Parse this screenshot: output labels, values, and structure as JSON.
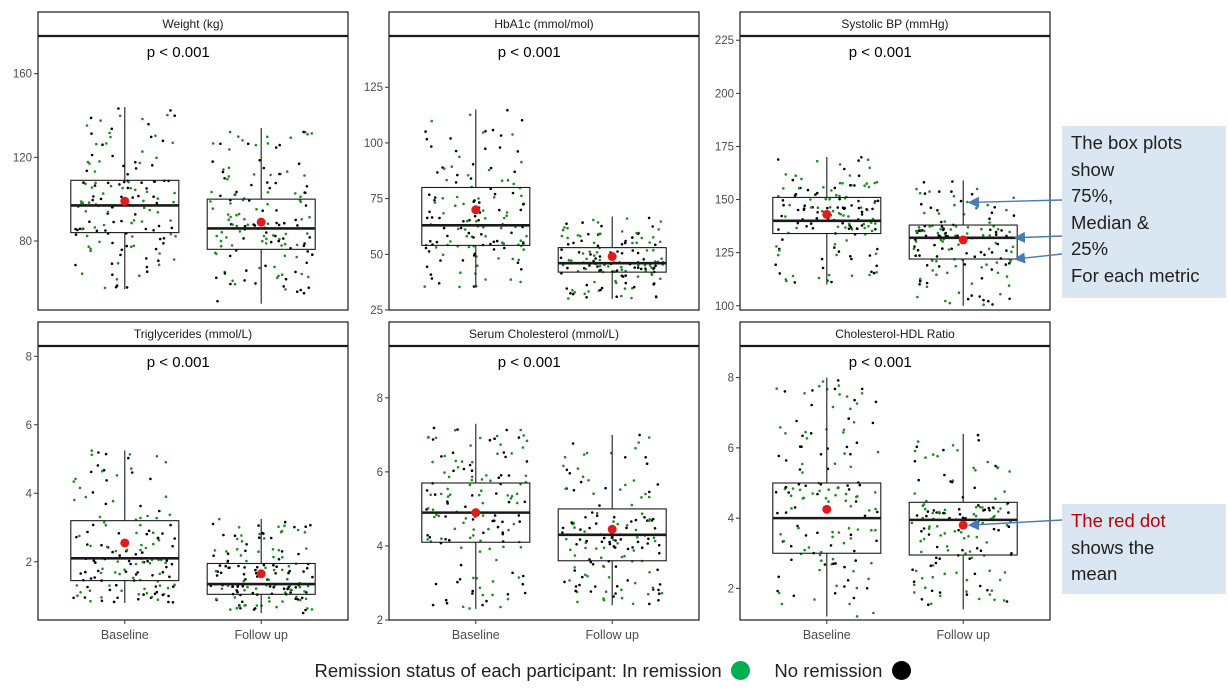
{
  "chart_data": [
    {
      "type": "box",
      "title": "Weight (kg)",
      "annotation": "p < 0.001",
      "categories": [
        "Baseline",
        "Follow up"
      ],
      "yticks": [
        80,
        120,
        160
      ],
      "ylim": [
        47,
        178
      ],
      "boxes": [
        {
          "min": 57,
          "q1": 84,
          "median": 97,
          "q3": 109,
          "max": 144,
          "mean": 99
        },
        {
          "min": 50,
          "q1": 76,
          "median": 86,
          "q3": 100,
          "max": 134,
          "mean": 89
        }
      ]
    },
    {
      "type": "box",
      "title": "HbA1c (mmol/mol)",
      "annotation": "p < 0.001",
      "categories": [
        "Baseline",
        "Follow up"
      ],
      "yticks": [
        25,
        50,
        75,
        100,
        125
      ],
      "ylim": [
        25,
        148
      ],
      "boxes": [
        {
          "min": 35,
          "q1": 54,
          "median": 63,
          "q3": 80,
          "max": 115,
          "mean": 70
        },
        {
          "min": 30,
          "q1": 42,
          "median": 46,
          "q3": 53,
          "max": 67,
          "mean": 49
        }
      ]
    },
    {
      "type": "box",
      "title": "Systolic BP (mmHg)",
      "annotation": "p < 0.001",
      "categories": [
        "Baseline",
        "Follow up"
      ],
      "yticks": [
        100,
        125,
        150,
        175,
        200,
        225
      ],
      "ylim": [
        98,
        227
      ],
      "boxes": [
        {
          "min": 110,
          "q1": 134,
          "median": 140,
          "q3": 151,
          "max": 170,
          "mean": 143
        },
        {
          "min": 100,
          "q1": 122,
          "median": 132,
          "q3": 138,
          "max": 159,
          "mean": 131
        }
      ]
    },
    {
      "type": "box",
      "title": "Triglycerides (mmol/L)",
      "annotation": "p < 0.001",
      "categories": [
        "Baseline",
        "Follow up"
      ],
      "yticks": [
        2,
        4,
        6,
        8
      ],
      "ylim": [
        0.3,
        8.3
      ],
      "boxes": [
        {
          "min": 0.8,
          "q1": 1.45,
          "median": 2.1,
          "q3": 3.2,
          "max": 5.25,
          "mean": 2.55
        },
        {
          "min": 0.5,
          "q1": 1.05,
          "median": 1.35,
          "q3": 1.95,
          "max": 3.25,
          "mean": 1.65
        }
      ]
    },
    {
      "type": "box",
      "title": "Serum Cholesterol (mmol/L)",
      "annotation": "p < 0.001",
      "categories": [
        "Baseline",
        "Follow up"
      ],
      "yticks": [
        2,
        4,
        6,
        8
      ],
      "ylim": [
        2,
        9.4
      ],
      "boxes": [
        {
          "min": 2.3,
          "q1": 4.1,
          "median": 4.9,
          "q3": 5.7,
          "max": 7.3,
          "mean": 4.9
        },
        {
          "min": 2.4,
          "q1": 3.6,
          "median": 4.3,
          "q3": 5.0,
          "max": 7.0,
          "mean": 4.45
        }
      ]
    },
    {
      "type": "box",
      "title": "Cholesterol-HDL Ratio",
      "annotation": "p < 0.001",
      "categories": [
        "Baseline",
        "Follow up"
      ],
      "yticks": [
        2,
        4,
        6,
        8
      ],
      "ylim": [
        1.1,
        8.9
      ],
      "boxes": [
        {
          "min": 1.2,
          "q1": 3.0,
          "median": 4.0,
          "q3": 5.0,
          "max": 8.0,
          "mean": 4.25
        },
        {
          "min": 1.4,
          "q1": 2.95,
          "median": 3.95,
          "q3": 4.45,
          "max": 6.4,
          "mean": 3.8
        }
      ]
    }
  ],
  "annotations": {
    "boxplot_note": [
      "The box plots",
      "show",
      "75%,",
      "Median &",
      "25%",
      "For each metric"
    ],
    "mean_note": [
      "The red dot",
      "shows the",
      "mean"
    ]
  },
  "legend": {
    "prefix": "Remission status of each participant:",
    "in_remission": "In remission",
    "no_remission": "No remission"
  },
  "colors": {
    "in_remission": "#1a8c1a",
    "no_remission": "#000000",
    "mean_dot": "#e31a1c",
    "note_highlight": "#c00000",
    "callout_bg": "#dae6f2",
    "arrow": "#4a7ab5",
    "legend_green": "#00b050"
  }
}
